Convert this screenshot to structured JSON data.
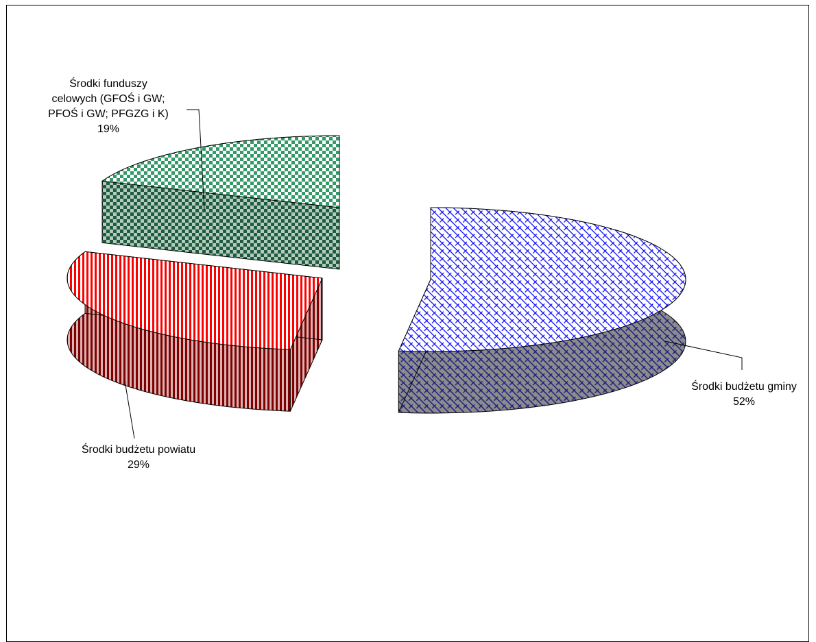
{
  "chart_data": {
    "type": "pie",
    "style": "3d-exploded",
    "title": "",
    "slices": [
      {
        "name_lines": [
          "Środki budżetu gminy"
        ],
        "value": 52,
        "pct_label": "52%",
        "top_color": "#0000ff",
        "side_color": "#1a1a80",
        "pattern": "diagonal-crosshatch"
      },
      {
        "name_lines": [
          "Środki budżetu powiatu"
        ],
        "value": 29,
        "pct_label": "29%",
        "top_color": "#ff0000",
        "side_color": "#800000",
        "pattern": "vertical-stripes"
      },
      {
        "name_lines": [
          "Środki funduszy",
          "celowych (GFOŚ i GW;",
          "PFOŚ i GW; PFGZG i K)"
        ],
        "value": 19,
        "pct_label": "19%",
        "top_color": "#339966",
        "side_color": "#1f5c3d",
        "pattern": "checkerboard"
      }
    ],
    "legend": "none",
    "data_labels": "category-and-percent"
  }
}
